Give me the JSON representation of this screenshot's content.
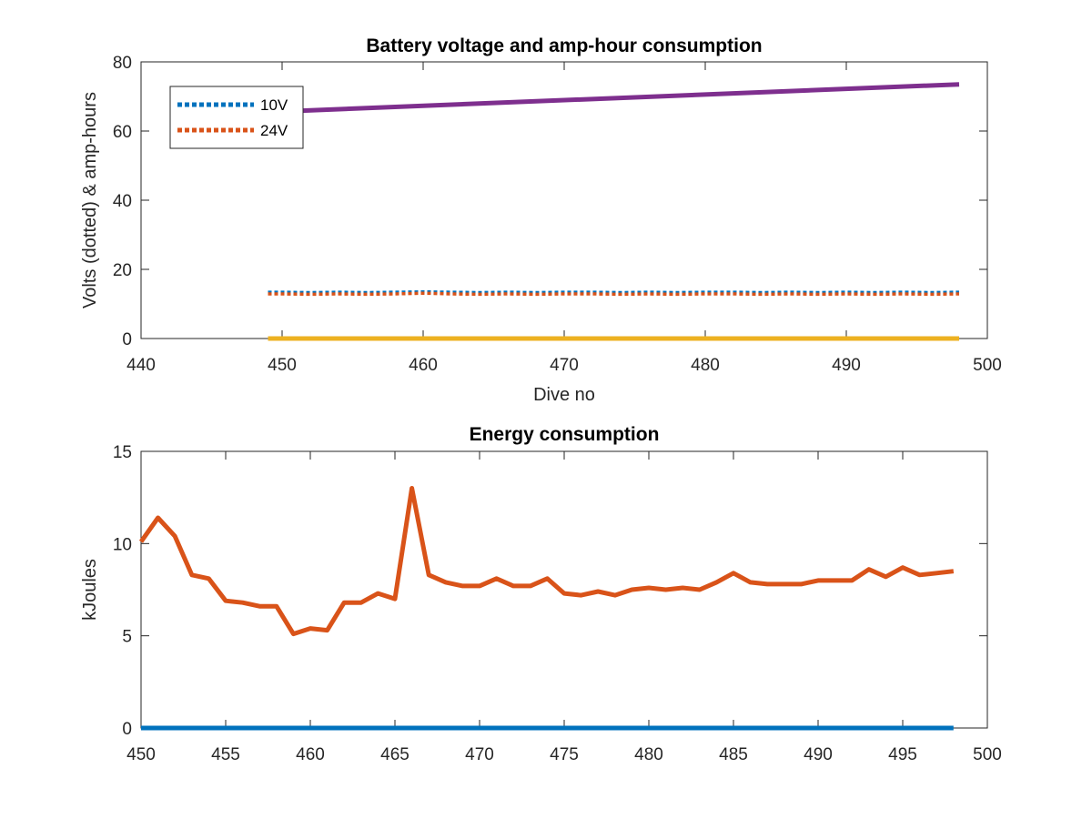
{
  "chart_data": [
    {
      "type": "line",
      "title": "Battery voltage and amp-hour consumption",
      "xlabel": "Dive no",
      "ylabel": "Volts (dotted) & amp-hours",
      "xlim": [
        440,
        500
      ],
      "ylim": [
        0,
        80
      ],
      "xticks": [
        440,
        450,
        460,
        470,
        480,
        490,
        500
      ],
      "yticks": [
        0,
        20,
        40,
        60,
        80
      ],
      "grid": false,
      "legend_position": "top-left",
      "series": [
        {
          "name": "10V",
          "color": "#0072BD",
          "style": "dotted",
          "x": [
            449,
            450,
            452,
            454,
            456,
            458,
            460,
            462,
            464,
            466,
            468,
            470,
            472,
            474,
            476,
            478,
            480,
            482,
            484,
            486,
            488,
            490,
            492,
            494,
            496,
            498
          ],
          "y": [
            13.4,
            13.4,
            13.3,
            13.4,
            13.3,
            13.4,
            13.5,
            13.4,
            13.3,
            13.4,
            13.3,
            13.4,
            13.4,
            13.3,
            13.4,
            13.3,
            13.4,
            13.4,
            13.3,
            13.4,
            13.3,
            13.4,
            13.3,
            13.4,
            13.3,
            13.4
          ]
        },
        {
          "name": "24V",
          "color": "#D95319",
          "style": "dotted",
          "x": [
            449,
            450,
            452,
            454,
            456,
            458,
            460,
            462,
            464,
            466,
            468,
            470,
            472,
            474,
            476,
            478,
            480,
            482,
            484,
            486,
            488,
            490,
            492,
            494,
            496,
            498
          ],
          "y": [
            12.9,
            12.9,
            12.8,
            12.9,
            12.8,
            12.9,
            13.1,
            12.9,
            12.8,
            12.9,
            12.8,
            12.9,
            12.9,
            12.8,
            12.9,
            12.8,
            12.9,
            12.9,
            12.8,
            12.9,
            12.8,
            12.9,
            12.8,
            12.9,
            12.8,
            12.9
          ]
        },
        {
          "color": "#7E2F8E",
          "style": "solid",
          "x": [
            449,
            498
          ],
          "y": [
            65.5,
            73.5
          ]
        },
        {
          "color": "#EDB120",
          "style": "solid",
          "x": [
            449,
            498
          ],
          "y": [
            0,
            0
          ]
        }
      ]
    },
    {
      "type": "line",
      "title": "Energy consumption",
      "xlabel": "",
      "ylabel": "kJoules",
      "xlim": [
        450,
        500
      ],
      "ylim": [
        0,
        15
      ],
      "xticks": [
        450,
        455,
        460,
        465,
        470,
        475,
        480,
        485,
        490,
        495,
        500
      ],
      "yticks": [
        0,
        5,
        10,
        15
      ],
      "grid": false,
      "series": [
        {
          "color": "#D95319",
          "style": "solid",
          "x": [
            450,
            451,
            452,
            453,
            454,
            455,
            456,
            457,
            458,
            459,
            460,
            461,
            462,
            463,
            464,
            465,
            466,
            467,
            468,
            469,
            470,
            471,
            472,
            473,
            474,
            475,
            476,
            477,
            478,
            479,
            480,
            481,
            482,
            483,
            484,
            485,
            486,
            487,
            488,
            489,
            490,
            491,
            492,
            493,
            494,
            495,
            496,
            497,
            498
          ],
          "y": [
            10.1,
            11.4,
            10.4,
            8.3,
            8.1,
            6.9,
            6.8,
            6.6,
            6.6,
            5.1,
            5.4,
            5.3,
            6.8,
            6.8,
            7.3,
            7.0,
            13.0,
            8.3,
            7.9,
            7.7,
            7.7,
            8.1,
            7.7,
            7.7,
            8.1,
            7.3,
            7.2,
            7.4,
            7.2,
            7.5,
            7.6,
            7.5,
            7.6,
            7.5,
            7.9,
            8.4,
            7.9,
            7.8,
            7.8,
            7.8,
            8.0,
            8.0,
            8.0,
            8.6,
            8.2,
            8.7,
            8.3,
            8.4,
            8.5
          ]
        },
        {
          "color": "#0072BD",
          "style": "solid",
          "x": [
            450,
            498
          ],
          "y": [
            0,
            0
          ]
        }
      ]
    }
  ]
}
